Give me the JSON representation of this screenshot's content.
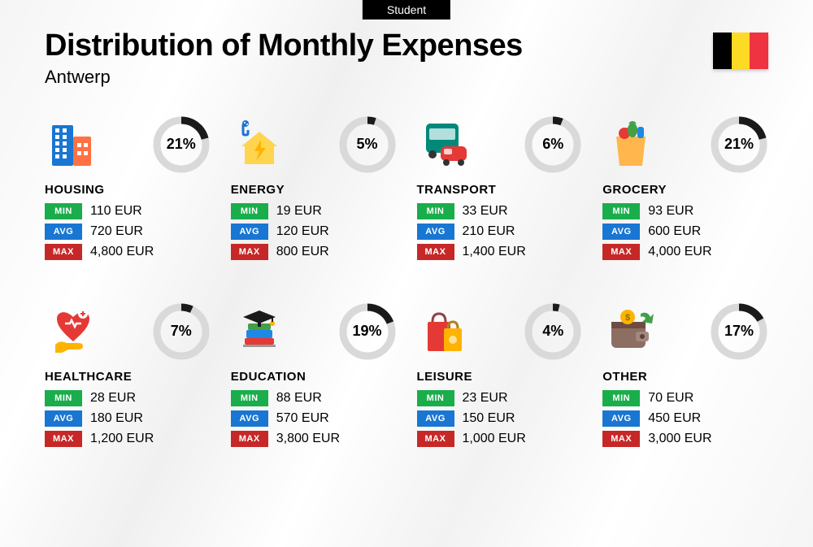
{
  "header": {
    "tag": "Student",
    "title": "Distribution of Monthly Expenses",
    "subtitle": "Antwerp"
  },
  "flag": {
    "stripes": [
      "#000000",
      "#fdda24",
      "#ef3340"
    ]
  },
  "labels": {
    "min": "MIN",
    "avg": "AVG",
    "max": "MAX"
  },
  "badge_colors": {
    "min": "#1aad4b",
    "avg": "#1976d2",
    "max": "#c62828"
  },
  "ring": {
    "radius": 30,
    "stroke_width": 9,
    "track_color": "#d9d9d9",
    "progress_color": "#1a1a1a",
    "font_size": 18,
    "font_weight": 800
  },
  "categories": [
    {
      "id": "housing",
      "label": "HOUSING",
      "pct": 21,
      "min": "110 EUR",
      "avg": "720 EUR",
      "max": "4,800 EUR",
      "icon": "housing"
    },
    {
      "id": "energy",
      "label": "ENERGY",
      "pct": 5,
      "min": "19 EUR",
      "avg": "120 EUR",
      "max": "800 EUR",
      "icon": "energy"
    },
    {
      "id": "transport",
      "label": "TRANSPORT",
      "pct": 6,
      "min": "33 EUR",
      "avg": "210 EUR",
      "max": "1,400 EUR",
      "icon": "transport"
    },
    {
      "id": "grocery",
      "label": "GROCERY",
      "pct": 21,
      "min": "93 EUR",
      "avg": "600 EUR",
      "max": "4,000 EUR",
      "icon": "grocery"
    },
    {
      "id": "healthcare",
      "label": "HEALTHCARE",
      "pct": 7,
      "min": "28 EUR",
      "avg": "180 EUR",
      "max": "1,200 EUR",
      "icon": "healthcare"
    },
    {
      "id": "education",
      "label": "EDUCATION",
      "pct": 19,
      "min": "88 EUR",
      "avg": "570 EUR",
      "max": "3,800 EUR",
      "icon": "education"
    },
    {
      "id": "leisure",
      "label": "LEISURE",
      "pct": 4,
      "min": "23 EUR",
      "avg": "150 EUR",
      "max": "1,000 EUR",
      "icon": "leisure"
    },
    {
      "id": "other",
      "label": "OTHER",
      "pct": 17,
      "min": "70 EUR",
      "avg": "450 EUR",
      "max": "3,000 EUR",
      "icon": "other"
    }
  ],
  "icons": {
    "housing": {
      "type": "buildings",
      "colors": [
        "#1976d2",
        "#ff7043"
      ]
    },
    "energy": {
      "type": "house-bolt",
      "colors": [
        "#ffb300",
        "#1976d2",
        "#ffd54f"
      ]
    },
    "transport": {
      "type": "bus-car",
      "colors": [
        "#00897b",
        "#e53935"
      ]
    },
    "grocery": {
      "type": "bag-veggies",
      "colors": [
        "#ffb74d",
        "#43a047",
        "#e53935",
        "#1e88e5"
      ]
    },
    "healthcare": {
      "type": "heart-hand",
      "colors": [
        "#e53935",
        "#ffb300"
      ]
    },
    "education": {
      "type": "books-cap",
      "colors": [
        "#1a1a1a",
        "#43a047",
        "#1e88e5",
        "#e53935"
      ]
    },
    "leisure": {
      "type": "shopping-bags",
      "colors": [
        "#e53935",
        "#ffb300"
      ]
    },
    "other": {
      "type": "wallet-arrow",
      "colors": [
        "#8d6e63",
        "#ffb300",
        "#43a047"
      ]
    }
  }
}
